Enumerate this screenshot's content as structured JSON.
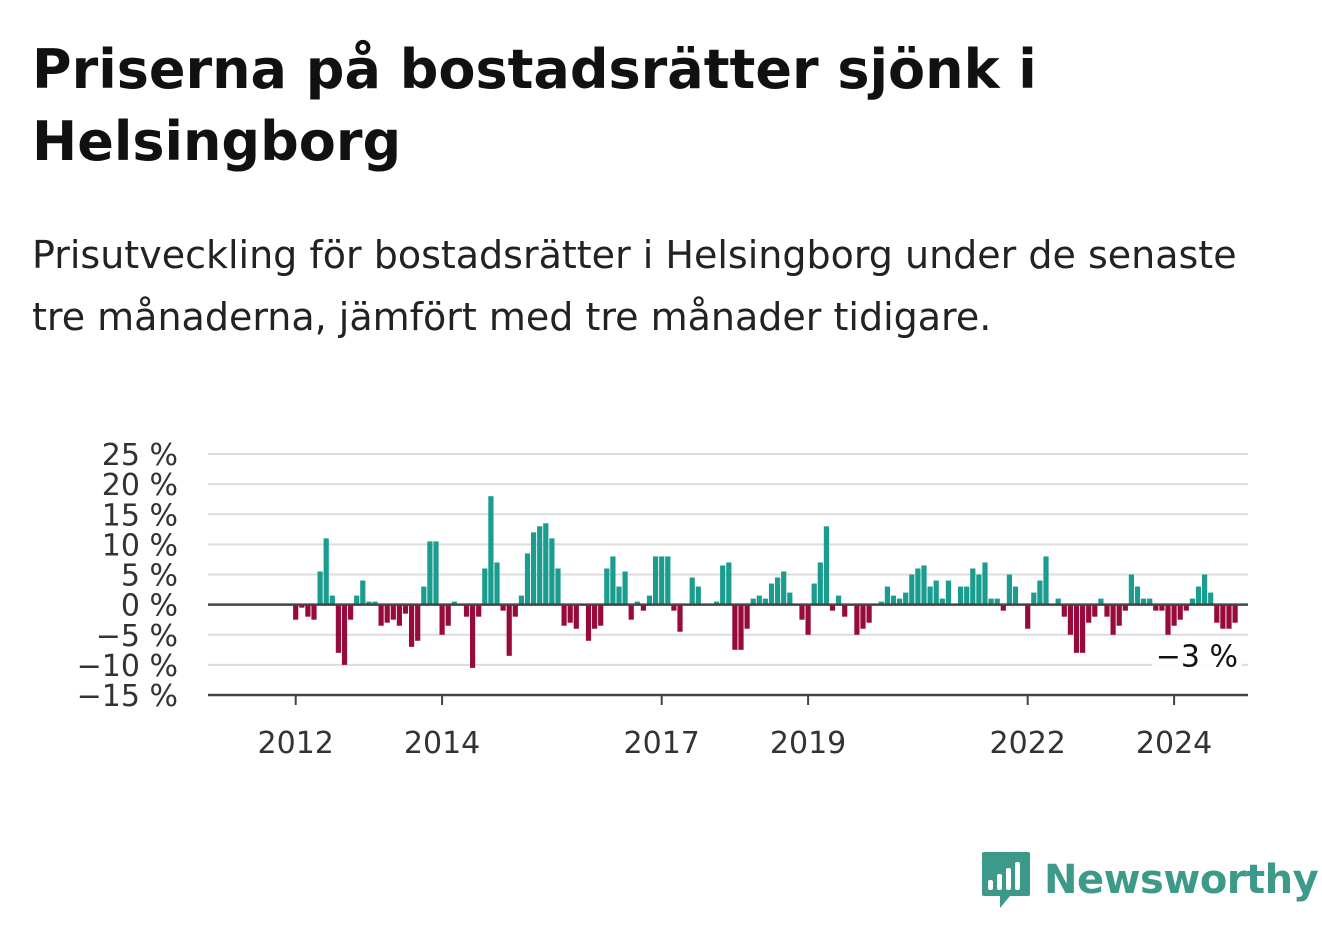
{
  "header": {
    "title": "Priserna på bostadsrätter sjönk i Helsingborg",
    "subtitle": "Prisutveckling för bostadsrätter i Helsingborg under de senaste tre månaderna, jämfört med tre månader tidigare."
  },
  "brand": {
    "name": "Newsworthy",
    "color": "#3d9a8b"
  },
  "chart_data": {
    "type": "bar",
    "ylim": [
      -15,
      25
    ],
    "y_ticks": [
      25,
      20,
      15,
      10,
      5,
      0,
      -5,
      -10,
      -15
    ],
    "y_tick_labels": [
      "25 %",
      "20 %",
      "15 %",
      "10 %",
      "5 %",
      "0 %",
      "−5 %",
      "−10 %",
      "−15 %"
    ],
    "x_ticks": [
      {
        "label": "2012",
        "at": "2012-01"
      },
      {
        "label": "2014",
        "at": "2014-01"
      },
      {
        "label": "2017",
        "at": "2017-01"
      },
      {
        "label": "2019",
        "at": "2019-01"
      },
      {
        "label": "2022",
        "at": "2022-01"
      },
      {
        "label": "2024",
        "at": "2024-01"
      }
    ],
    "colors": {
      "positive": "#1a9c8f",
      "negative": "#960a3c"
    },
    "grid": true,
    "annotation": {
      "label": "−3 %",
      "value": -3,
      "at": "2025-01"
    },
    "start_month": "2011-01",
    "values": [
      0,
      0,
      0,
      0,
      0,
      0,
      0,
      0,
      0,
      0,
      0,
      0,
      -2.5,
      -0.5,
      -2,
      -2.5,
      5.5,
      11,
      1.5,
      -8,
      -10,
      -2.5,
      1.5,
      4,
      0.5,
      0.5,
      -3.5,
      -3,
      -2.5,
      -3.5,
      -1.5,
      -7,
      -6,
      3,
      10.5,
      10.5,
      -5,
      -3.5,
      0.5,
      0,
      -2,
      -10.5,
      -2,
      6,
      18,
      7,
      -1,
      -8.5,
      -2,
      1.5,
      8.5,
      12,
      13,
      13.5,
      11,
      6,
      -3.5,
      -3,
      -4,
      0,
      -6,
      -4,
      -3.5,
      6,
      8,
      3,
      5.5,
      -2.5,
      0.5,
      -1,
      1.5,
      8,
      8,
      8,
      -1,
      -4.5,
      0,
      4.5,
      3,
      0,
      0,
      0.5,
      6.5,
      7,
      -7.5,
      -7.5,
      -4,
      1,
      1.5,
      1,
      3.5,
      4.5,
      5.5,
      2,
      0,
      -2.5,
      -5,
      3.5,
      7,
      13,
      -1,
      1.5,
      -2,
      0,
      -5,
      -4,
      -3,
      0,
      0.5,
      3,
      1.5,
      1,
      2,
      5,
      6,
      6.5,
      3,
      4,
      1,
      4,
      0,
      3,
      3,
      6,
      5,
      7,
      1,
      1,
      -1,
      5,
      3,
      0,
      -4,
      2,
      4,
      8,
      0,
      1,
      -2,
      -5,
      -8,
      -8,
      -3,
      -2,
      1,
      -2,
      -5,
      -3.5,
      -1,
      5,
      3,
      1,
      1,
      -1,
      -1,
      -5,
      -3.5,
      -2.5,
      -1,
      1,
      3,
      5,
      2,
      -3,
      -4,
      -4,
      -3
    ]
  }
}
